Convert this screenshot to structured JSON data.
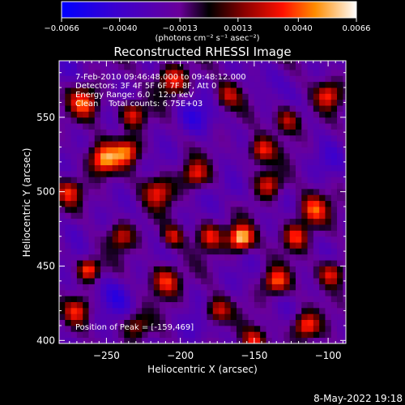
{
  "chart_data": {
    "type": "heatmap",
    "title": "Reconstructed RHESSI Image",
    "xlabel": "Heliocentric X (arcsec)",
    "ylabel": "Heliocentric Y (arcsec)",
    "xlim": [
      -282,
      -88
    ],
    "ylim": [
      398,
      588
    ],
    "x_ticks": [
      -250,
      -200,
      -150,
      -100
    ],
    "y_ticks": [
      400,
      450,
      500,
      550
    ],
    "x_tick_labels": [
      "−250",
      "−200",
      "−150",
      "−100"
    ],
    "y_tick_labels": [
      "400",
      "450",
      "500",
      "550"
    ],
    "colorbar": {
      "min": -0.0066,
      "max": 0.0066,
      "tick_values": [
        -0.0066,
        -0.004,
        -0.0013,
        0.0013,
        0.004,
        0.0066
      ],
      "tick_labels": [
        "−0.0066",
        "−0.0040",
        "−0.0013",
        "0.0013",
        "0.0040",
        "0.0066"
      ],
      "unit_label": "(photons cm⁻² s⁻¹ asec⁻²)"
    },
    "annotations": [
      "7-Feb-2010 09:46:48.000 to 09:48:12.000",
      "Detectors: 3F 4F 5F 6F 7F 8F, Att 0",
      "Energy Range: 6.0 - 12.0 keV",
      "Clean    Total counts: 6.75E+03"
    ],
    "peak_label": "Position of Peak = [-159,469]",
    "peak": [
      -159,
      469
    ],
    "hotspots": [
      {
        "x": -159,
        "y": 469,
        "v": 0.0066,
        "s": 6
      },
      {
        "x": -252,
        "y": 522,
        "v": 0.005,
        "s": 7
      },
      {
        "x": -236,
        "y": 527,
        "v": 0.004,
        "s": 6
      },
      {
        "x": -265,
        "y": 560,
        "v": 0.0035,
        "s": 7
      },
      {
        "x": -205,
        "y": 575,
        "v": 0.0032,
        "s": 7
      },
      {
        "x": -232,
        "y": 552,
        "v": 0.003,
        "s": 6
      },
      {
        "x": -262,
        "y": 448,
        "v": 0.0045,
        "s": 5
      },
      {
        "x": -275,
        "y": 500,
        "v": 0.003,
        "s": 6
      },
      {
        "x": -215,
        "y": 500,
        "v": 0.003,
        "s": 7
      },
      {
        "x": -190,
        "y": 512,
        "v": 0.003,
        "s": 6
      },
      {
        "x": -145,
        "y": 528,
        "v": 0.0035,
        "s": 6
      },
      {
        "x": -140,
        "y": 505,
        "v": 0.003,
        "s": 6
      },
      {
        "x": -110,
        "y": 488,
        "v": 0.0035,
        "s": 7
      },
      {
        "x": -122,
        "y": 470,
        "v": 0.0032,
        "s": 6
      },
      {
        "x": -135,
        "y": 440,
        "v": 0.004,
        "s": 6
      },
      {
        "x": -98,
        "y": 445,
        "v": 0.0035,
        "s": 6
      },
      {
        "x": -115,
        "y": 410,
        "v": 0.004,
        "s": 6
      },
      {
        "x": -175,
        "y": 420,
        "v": 0.003,
        "s": 6
      },
      {
        "x": -210,
        "y": 440,
        "v": 0.0035,
        "s": 7
      },
      {
        "x": -180,
        "y": 470,
        "v": 0.003,
        "s": 6
      },
      {
        "x": -240,
        "y": 470,
        "v": 0.0025,
        "s": 6
      },
      {
        "x": -100,
        "y": 565,
        "v": 0.003,
        "s": 6
      },
      {
        "x": -128,
        "y": 548,
        "v": 0.0025,
        "s": 6
      },
      {
        "x": -168,
        "y": 565,
        "v": 0.002,
        "s": 6
      },
      {
        "x": -270,
        "y": 420,
        "v": 0.0025,
        "s": 6
      },
      {
        "x": -230,
        "y": 410,
        "v": 0.002,
        "s": 6
      },
      {
        "x": -205,
        "y": 470,
        "v": 0.0025,
        "s": 5
      },
      {
        "x": -150,
        "y": 400,
        "v": 0.003,
        "s": 6
      }
    ],
    "coldspots": [
      {
        "x": -190,
        "y": 550,
        "v": -0.004,
        "s": 9
      },
      {
        "x": -140,
        "y": 575,
        "v": -0.003,
        "s": 8
      },
      {
        "x": -165,
        "y": 500,
        "v": -0.003,
        "s": 8
      },
      {
        "x": -245,
        "y": 430,
        "v": -0.004,
        "s": 9
      },
      {
        "x": -190,
        "y": 410,
        "v": -0.003,
        "s": 8
      },
      {
        "x": -100,
        "y": 520,
        "v": -0.003,
        "s": 8
      },
      {
        "x": -160,
        "y": 440,
        "v": -0.0025,
        "s": 7
      },
      {
        "x": -280,
        "y": 580,
        "v": -0.003,
        "s": 7
      },
      {
        "x": -270,
        "y": 475,
        "v": -0.003,
        "s": 7
      },
      {
        "x": -95,
        "y": 415,
        "v": -0.002,
        "s": 6
      },
      {
        "x": -215,
        "y": 525,
        "v": -0.002,
        "s": 6
      }
    ]
  },
  "footer": {
    "timestamp": "8-May-2022 19:18"
  }
}
